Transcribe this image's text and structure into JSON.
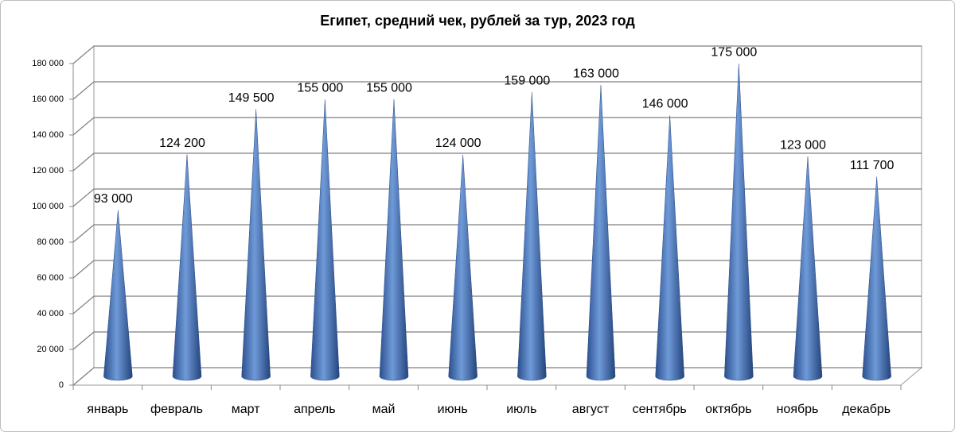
{
  "chart_data": {
    "type": "cone",
    "title": "Египет, средний чек, рублей за тур, 2023 год",
    "categories": [
      "январь",
      "февраль",
      "март",
      "апрель",
      "май",
      "июнь",
      "июль",
      "август",
      "сентябрь",
      "октябрь",
      "ноябрь",
      "декабрь"
    ],
    "values": [
      93000,
      124200,
      149500,
      155000,
      155000,
      124000,
      159000,
      163000,
      146000,
      175000,
      123000,
      111700
    ],
    "value_labels": [
      "93 000",
      "124 200",
      "149 500",
      "155 000",
      "155 000",
      "124 000",
      "159 000",
      "163 000",
      "146 000",
      "175 000",
      "123 000",
      "111 700"
    ],
    "color": "#4a78c0",
    "ylim": [
      0,
      180000
    ],
    "yticks": [
      0,
      {
        "value": 20000,
        "label": "20 000"
      },
      {
        "value": 40000,
        "label": "40 000"
      },
      {
        "value": 60000,
        "label": "60 000"
      },
      {
        "value": 80000,
        "label": "80 000"
      },
      {
        "value": 100000,
        "label": "100 000"
      },
      {
        "value": 120000,
        "label": "120 000"
      },
      {
        "value": 140000,
        "label": "140 000"
      },
      {
        "value": 160000,
        "label": "160 000"
      },
      {
        "value": 180000,
        "label": "180 000"
      }
    ],
    "grid": true
  }
}
